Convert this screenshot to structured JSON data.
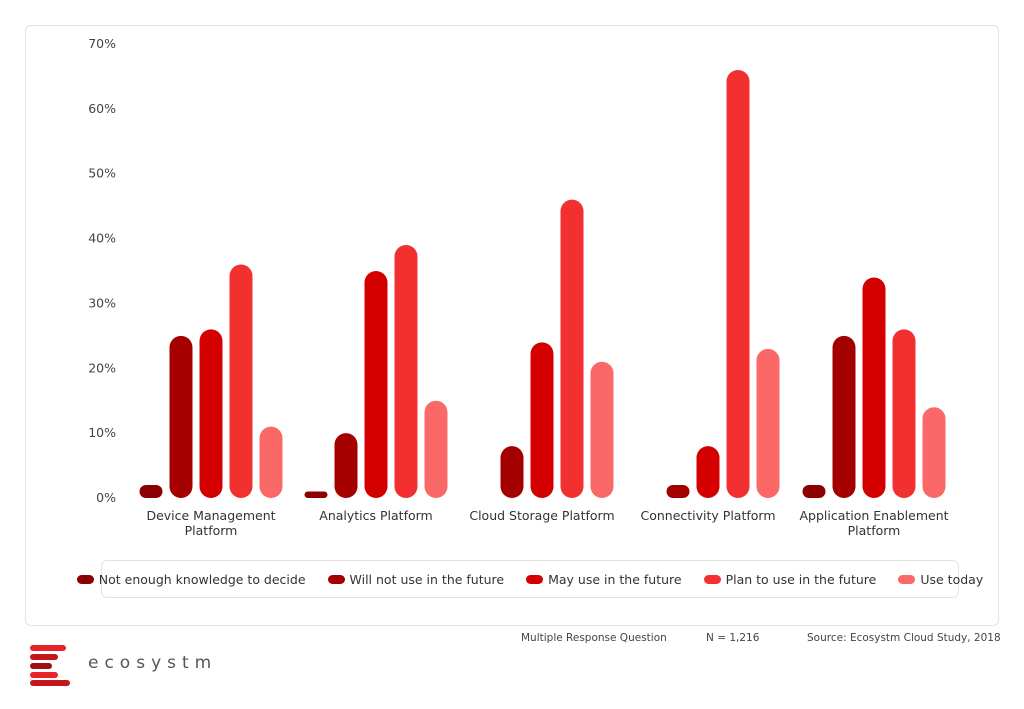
{
  "chart_data": {
    "type": "bar",
    "categories": [
      "Device Management Platform",
      "Analytics Platform",
      "Cloud Storage Platform",
      "Connectivity Platform",
      "Application Enablement Platform"
    ],
    "category_lines": [
      [
        "Device Management",
        "Platform"
      ],
      [
        "Analytics Platform"
      ],
      [
        "Cloud Storage Platform"
      ],
      [
        "Connectivity Platform"
      ],
      [
        "Application Enablement",
        "Platform"
      ]
    ],
    "series": [
      {
        "name": "Not enough knowledge to decide",
        "color": "#8b0000",
        "values": [
          2,
          1,
          0,
          0,
          2
        ]
      },
      {
        "name": "Will not use in the future",
        "color": "#a50000",
        "values": [
          25,
          10,
          8,
          2,
          25
        ]
      },
      {
        "name": "May use in the future",
        "color": "#d40000",
        "values": [
          26,
          35,
          24,
          8,
          34
        ]
      },
      {
        "name": "Plan to use in the future",
        "color": "#f23030",
        "values": [
          36,
          39,
          46,
          66,
          26
        ]
      },
      {
        "name": "Use today",
        "color": "#fb6868",
        "values": [
          11,
          15,
          21,
          23,
          14
        ]
      }
    ],
    "yticks": [
      "0%",
      "10%",
      "20%",
      "30%",
      "40%",
      "50%",
      "60%",
      "70%"
    ],
    "ylim": [
      0,
      70
    ],
    "grid": false,
    "legend_position": "bottom"
  },
  "footer": {
    "question": "Multiple Response Question",
    "sample": "N = 1,216",
    "source": "Source: Ecosystm Cloud Study, 2018"
  },
  "brand": {
    "name": "ecosystm",
    "colors": [
      "#e8232a",
      "#c4161c",
      "#a00f12"
    ]
  }
}
